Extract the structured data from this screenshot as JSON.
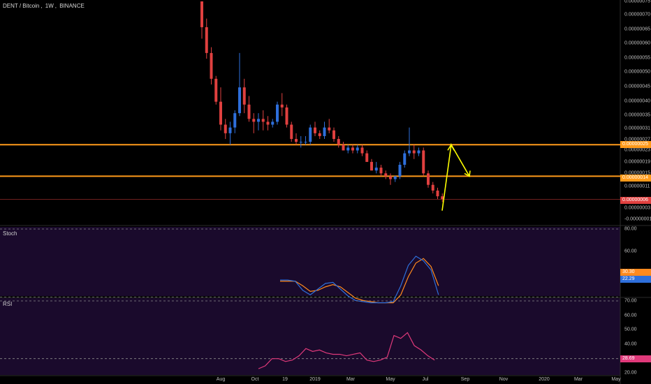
{
  "header": {
    "symbol": "DENT / Bitcoin",
    "interval": "1W",
    "exchange": "BINANCE"
  },
  "colors": {
    "up": "#2e6fdb",
    "down": "#e0403f",
    "level_line": "#ff9a1a",
    "current_line": "#e0403f",
    "arrow": "#ffff00",
    "stoch_k": "#2e6fdb",
    "stoch_d": "#ff8a1e",
    "rsi": "#e0397a",
    "pane_bg": "#1a0a2c"
  },
  "main_pane": {
    "y_ticks": [
      "0.00000075",
      "0.00000070",
      "0.00000065",
      "0.00000060",
      "0.00000055",
      "0.00000050",
      "0.00000045",
      "0.00000040",
      "0.00000035",
      "0.00000031",
      "0.00000027",
      "0.00000023",
      "0.00000019",
      "0.00000015",
      "0.00000011",
      "0.00000003",
      "-0.00000001"
    ],
    "tags": [
      {
        "label": "0.00000025",
        "color": "#ff9a1a"
      },
      {
        "label": "0.00000014",
        "color": "#ff9a1a"
      },
      {
        "label": "0.00000006",
        "color": "#e0403f"
      }
    ]
  },
  "stoch_pane": {
    "label": "Stoch",
    "y_ticks": [
      "80.00",
      "60.00",
      "40.00"
    ],
    "tags": [
      {
        "label": "30.30",
        "color": "#ff8a1e"
      },
      {
        "label": "22.29",
        "color": "#2e6fdb"
      }
    ]
  },
  "rsi_pane": {
    "label": "RSI",
    "y_ticks": [
      "70.00",
      "60.00",
      "50.00",
      "40.00",
      "20.00"
    ],
    "tags": [
      {
        "label": "28.69",
        "color": "#e0397a"
      }
    ]
  },
  "x_axis": {
    "labels": [
      "Aug",
      "Oct",
      "19",
      "2019",
      "Mar",
      "May",
      "Jul",
      "Sep",
      "Nov",
      "2020",
      "Mar",
      "May"
    ]
  },
  "chart_data": {
    "type": "candlestick",
    "series_name": "DENT / Bitcoin, 1W, BINANCE",
    "unit": "BTC",
    "ohlc": [
      [
        7.5e-07,
        7.5e-07,
        6.2e-07,
        6.6e-07
      ],
      [
        6.6e-07,
        6.9e-07,
        5.5e-07,
        5.7e-07
      ],
      [
        5.7e-07,
        5.9e-07,
        4.6e-07,
        4.8e-07
      ],
      [
        4.8e-07,
        4.9e-07,
        3.9e-07,
        4e-07
      ],
      [
        4e-07,
        4.5e-07,
        3e-07,
        3.2e-07
      ],
      [
        3.2e-07,
        3.4e-07,
        2.7e-07,
        2.9e-07
      ],
      [
        2.9e-07,
        3.3e-07,
        2.5e-07,
        3.1e-07
      ],
      [
        3.1e-07,
        3.7e-07,
        2.9e-07,
        3.6e-07
      ],
      [
        3.6e-07,
        5.7e-07,
        3.5e-07,
        4.5e-07
      ],
      [
        4.5e-07,
        4.8e-07,
        3.6e-07,
        3.9e-07
      ],
      [
        3.9e-07,
        4.2e-07,
        3.3e-07,
        3.4e-07
      ],
      [
        3.4e-07,
        3.6e-07,
        2.9e-07,
        3.3e-07
      ],
      [
        3.3e-07,
        3.6e-07,
        3e-07,
        3.4e-07
      ],
      [
        3.4e-07,
        3.7e-07,
        3e-07,
        3.3e-07
      ],
      [
        3.3e-07,
        3.5e-07,
        3e-07,
        3.2e-07
      ],
      [
        3.2e-07,
        3.4e-07,
        3.1e-07,
        3.3e-07
      ],
      [
        3.3e-07,
        4e-07,
        3.2e-07,
        3.9e-07
      ],
      [
        3.9e-07,
        4.3e-07,
        3.5e-07,
        3.8e-07
      ],
      [
        3.8e-07,
        3.9e-07,
        3.1e-07,
        3.2e-07
      ],
      [
        3.2e-07,
        3.3e-07,
        2.6e-07,
        2.7e-07
      ],
      [
        2.7e-07,
        2.9e-07,
        2.5e-07,
        2.6e-07
      ],
      [
        2.6e-07,
        2.8e-07,
        2.4e-07,
        2.6e-07
      ],
      [
        2.6e-07,
        2.8e-07,
        2.5e-07,
        2.6e-07
      ],
      [
        2.6e-07,
        3.2e-07,
        2.5e-07,
        3.1e-07
      ],
      [
        3.1e-07,
        3.3e-07,
        2.8e-07,
        2.9e-07
      ],
      [
        2.9e-07,
        3e-07,
        2.7e-07,
        2.8e-07
      ],
      [
        2.8e-07,
        3.3e-07,
        2.7e-07,
        3.1e-07
      ],
      [
        3.1e-07,
        3.4e-07,
        2.9e-07,
        3e-07
      ],
      [
        3e-07,
        3.1e-07,
        2.6e-07,
        2.7e-07
      ],
      [
        2.7e-07,
        2.8e-07,
        2.4e-07,
        2.5e-07
      ],
      [
        2.5e-07,
        2.6e-07,
        2.3e-07,
        2.3e-07
      ],
      [
        2.3e-07,
        2.5e-07,
        2.2e-07,
        2.4e-07
      ],
      [
        2.4e-07,
        2.5e-07,
        2.2e-07,
        2.3e-07
      ],
      [
        2.3e-07,
        2.5e-07,
        2.2e-07,
        2.4e-07
      ],
      [
        2.4e-07,
        2.5e-07,
        2.1e-07,
        2.2e-07
      ],
      [
        2.2e-07,
        2.3e-07,
        1.9e-07,
        1.9e-07
      ],
      [
        1.9e-07,
        2e-07,
        1.6e-07,
        1.6e-07
      ],
      [
        1.6e-07,
        1.9e-07,
        1.5e-07,
        1.7e-07
      ],
      [
        1.7e-07,
        1.8e-07,
        1.4e-07,
        1.5e-07
      ],
      [
        1.5e-07,
        1.6e-07,
        1.3e-07,
        1.4e-07
      ],
      [
        1.4e-07,
        1.5e-07,
        1.1e-07,
        1.3e-07
      ],
      [
        1.3e-07,
        1.4e-07,
        1.2e-07,
        1.4e-07
      ],
      [
        1.4e-07,
        1.9e-07,
        1.3e-07,
        1.8e-07
      ],
      [
        1.8e-07,
        2.3e-07,
        1.7e-07,
        2.2e-07
      ],
      [
        2.2e-07,
        3.1e-07,
        2.1e-07,
        2.3e-07
      ],
      [
        2.3e-07,
        2.5e-07,
        2e-07,
        2.2e-07
      ],
      [
        2.2e-07,
        2.4e-07,
        2.1e-07,
        2.3e-07
      ],
      [
        2.3e-07,
        2.4e-07,
        1.4e-07,
        1.5e-07
      ],
      [
        1.5e-07,
        1.6e-07,
        1e-07,
        1.1e-07
      ],
      [
        1.1e-07,
        1.2e-07,
        8e-08,
        9e-08
      ],
      [
        9e-08,
        1e-07,
        6e-08,
        7e-08
      ],
      [
        7e-08,
        8e-08,
        5e-08,
        6e-08
      ]
    ],
    "horizontal_levels": [
      2.5e-07,
      1.4e-07
    ],
    "last_price": 6e-08,
    "projection": [
      [
        6e-08,
        2e-08
      ],
      [
        9e-08,
        2.5e-07
      ],
      [
        1.4e-07,
        1.4e-07
      ]
    ],
    "stoch": {
      "k": [
        35,
        35,
        34,
        26,
        22,
        27,
        32,
        33,
        27,
        21,
        17,
        16,
        15,
        15,
        15,
        16,
        30,
        48,
        56,
        52,
        44,
        22
      ],
      "d": [
        34,
        34,
        34,
        30,
        25,
        26,
        29,
        31,
        29,
        24,
        19,
        17,
        16,
        15,
        15,
        15,
        22,
        38,
        50,
        54,
        47,
        30
      ],
      "levels": [
        80,
        20
      ]
    },
    "rsi": {
      "values": [
        23,
        25,
        30,
        30,
        28,
        29,
        32,
        37,
        35,
        36,
        34,
        33,
        33,
        32,
        33,
        34,
        29,
        28,
        29,
        31,
        46,
        44,
        48,
        39,
        36,
        32,
        29
      ],
      "levels": [
        70,
        30
      ]
    }
  }
}
